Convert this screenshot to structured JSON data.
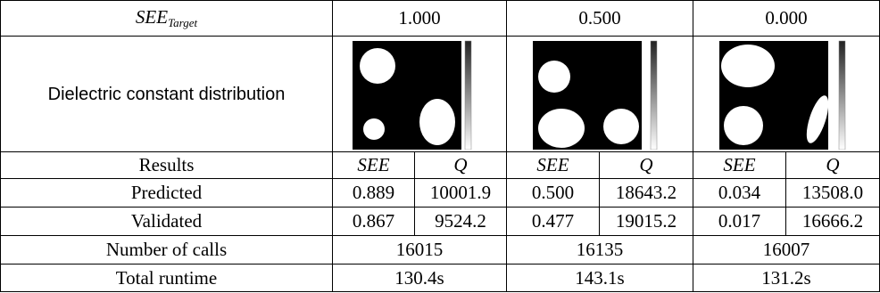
{
  "header": {
    "label": "SEE",
    "subscript": "Target",
    "targets": [
      "1.000",
      "0.500",
      "0.000"
    ]
  },
  "image_row_label": "Dielectric constant distribution",
  "results_row": {
    "label": "Results",
    "columns": [
      "SEE",
      "Q",
      "SEE",
      "Q",
      "SEE",
      "Q"
    ]
  },
  "rows": [
    {
      "label": "Predicted",
      "values": [
        "0.889",
        "10001.9",
        "0.500",
        "18643.2",
        "0.034",
        "13508.0"
      ]
    },
    {
      "label": "Validated",
      "values": [
        "0.867",
        "9524.2",
        "0.477",
        "19015.2",
        "0.017",
        "16666.2"
      ]
    }
  ],
  "summary_rows": [
    {
      "label": "Number of calls",
      "values": [
        "16015",
        "16135",
        "16007"
      ]
    },
    {
      "label": "Total runtime",
      "values": [
        "130.4s",
        "143.1s",
        "131.2s"
      ]
    }
  ]
}
